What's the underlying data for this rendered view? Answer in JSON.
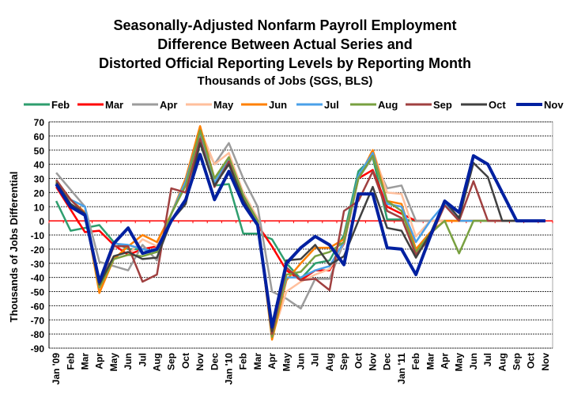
{
  "chart_data": {
    "type": "line",
    "title": [
      "Seasonally-Adjusted Nonfarm Payroll Employment",
      "Difference Between Actual Series and",
      "Distorted Official Reporting Levels by Reporting Month"
    ],
    "subtitle": "Thousands of Jobs (SGS, BLS)",
    "xlabel": "",
    "ylabel": "Thousands of Jobs Differential",
    "ylim": [
      -90,
      70
    ],
    "yticks": [
      70,
      60,
      50,
      40,
      30,
      20,
      10,
      0,
      -10,
      -20,
      -30,
      -40,
      -50,
      -60,
      -70,
      -80,
      -90
    ],
    "grid": true,
    "legend_position": "top",
    "categories": [
      "Jan '09",
      "Feb",
      "Mar",
      "Apr",
      "May",
      "Jun",
      "Jul",
      "Aug",
      "Sep",
      "Oct",
      "Nov",
      "Dec",
      "Jan '10",
      "Feb",
      "Mar",
      "Apr",
      "May",
      "Jun",
      "Jul",
      "Aug",
      "Sep",
      "Oct",
      "Nov",
      "Dec",
      "Jan '11",
      "Feb",
      "Mar",
      "Apr",
      "May",
      "Jun",
      "Jul",
      "Aug",
      "Sep",
      "Oct",
      "Nov"
    ],
    "series": [
      {
        "name": "Feb",
        "color": "#2e9e6e",
        "values": [
          14,
          -7,
          -5,
          -3,
          -15,
          -20,
          -20,
          -22,
          5,
          28,
          62,
          25,
          26,
          -9,
          -9,
          -13,
          -30,
          -41,
          -30,
          -28,
          -10,
          35,
          45,
          1,
          1,
          0,
          0,
          0,
          0,
          0,
          0,
          0,
          0,
          0,
          0
        ]
      },
      {
        "name": "Mar",
        "color": "#ff0000",
        "values": [
          24,
          8,
          -8,
          -7,
          -17,
          -24,
          -20,
          -18,
          5,
          28,
          62,
          25,
          42,
          15,
          -3,
          -18,
          -35,
          -42,
          -35,
          -35,
          -16,
          30,
          36,
          10,
          5,
          0,
          0,
          0,
          0,
          0,
          0,
          0,
          0,
          0,
          0
        ]
      },
      {
        "name": "Apr",
        "color": "#9c9c9c",
        "values": [
          34,
          22,
          10,
          -29,
          -32,
          -35,
          -17,
          -28,
          5,
          28,
          62,
          40,
          55,
          30,
          10,
          -50,
          -55,
          -62,
          -41,
          -41,
          -15,
          30,
          45,
          23,
          25,
          0,
          0,
          0,
          0,
          0,
          0,
          0,
          0,
          0,
          0
        ]
      },
      {
        "name": "May",
        "color": "#ffbf9c",
        "values": [
          28,
          15,
          5,
          -49,
          -27,
          -24,
          -13,
          -18,
          5,
          30,
          65,
          40,
          48,
          20,
          2,
          -82,
          -50,
          -43,
          -38,
          -34,
          -15,
          30,
          50,
          20,
          19,
          -11,
          0,
          0,
          0,
          0,
          0,
          0,
          0,
          0,
          0
        ]
      },
      {
        "name": "Jun",
        "color": "#ff8000",
        "values": [
          28,
          15,
          6,
          -51,
          -27,
          -18,
          -10,
          -15,
          5,
          30,
          67,
          30,
          45,
          18,
          0,
          -84,
          -42,
          -30,
          -19,
          -19,
          -13,
          30,
          50,
          14,
          12,
          -20,
          -8,
          0,
          0,
          0,
          0,
          0,
          0,
          0,
          0
        ]
      },
      {
        "name": "Jul",
        "color": "#4aa0e8",
        "values": [
          27,
          15,
          10,
          -47,
          -16,
          -17,
          -20,
          -22,
          5,
          28,
          63,
          27,
          44,
          18,
          0,
          -80,
          -40,
          -40,
          -35,
          -32,
          -15,
          32,
          48,
          12,
          10,
          -15,
          0,
          12,
          0,
          0,
          0,
          0,
          0,
          0,
          0
        ]
      },
      {
        "name": "Aug",
        "color": "#78a040",
        "values": [
          28,
          15,
          5,
          -47,
          -27,
          -24,
          -25,
          -22,
          5,
          25,
          64,
          30,
          45,
          18,
          0,
          -82,
          -38,
          -36,
          -25,
          -22,
          -15,
          30,
          46,
          14,
          7,
          -22,
          -9,
          0,
          -23,
          0,
          0,
          0,
          0,
          0,
          0
        ]
      },
      {
        "name": "Sep",
        "color": "#a04040",
        "values": [
          29,
          15,
          5,
          -45,
          -18,
          -18,
          -43,
          -38,
          23,
          20,
          58,
          24,
          42,
          13,
          -3,
          -80,
          -33,
          -42,
          -41,
          -49,
          7,
          14,
          35,
          7,
          2,
          -24,
          -12,
          11,
          0,
          28,
          0,
          0,
          0,
          0,
          0
        ]
      },
      {
        "name": "Oct",
        "color": "#404040",
        "values": [
          27,
          12,
          5,
          -45,
          -25,
          -22,
          -27,
          -26,
          0,
          12,
          55,
          25,
          40,
          15,
          -3,
          -78,
          -28,
          -27,
          -17,
          -31,
          -25,
          0,
          24,
          -5,
          -7,
          -26,
          -9,
          14,
          2,
          41,
          31,
          0,
          0,
          0,
          0
        ]
      },
      {
        "name": "Nov",
        "color": "#0020a0",
        "values": [
          26,
          10,
          4,
          -43,
          -16,
          -5,
          -23,
          -20,
          0,
          15,
          47,
          15,
          35,
          12,
          -3,
          -75,
          -30,
          -19,
          -11,
          -17,
          -31,
          19,
          19,
          -19,
          -20,
          -38,
          -11,
          14,
          6,
          46,
          40,
          20,
          0,
          0,
          0
        ]
      }
    ]
  }
}
